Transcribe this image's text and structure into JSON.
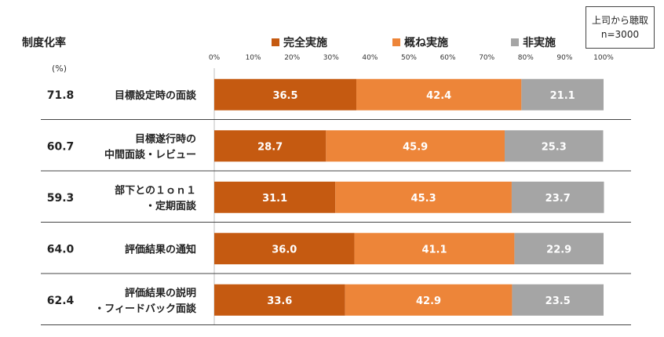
{
  "note": {
    "line1": "上司から聴取",
    "line2": "n=3000"
  },
  "rate_title": "制度化率",
  "unit": "(%)",
  "chart_data": {
    "type": "bar",
    "orientation": "horizontal",
    "stacked": true,
    "xlim": [
      0,
      100
    ],
    "x_ticks": [
      "0%",
      "10%",
      "20%",
      "30%",
      "40%",
      "50%",
      "60%",
      "70%",
      "80%",
      "90%",
      "100%"
    ],
    "categories": [
      [
        "目標設定時の面談"
      ],
      [
        "目標遂行時の",
        "中間面談・レビュー"
      ],
      [
        "部下との１ｏｎ１",
        "・定期面談"
      ],
      [
        "評価結果の通知"
      ],
      [
        "評価結果の説明",
        "・フィードバック面談"
      ]
    ],
    "rates": [
      "71.8",
      "60.7",
      "59.3",
      "64.0",
      "62.4"
    ],
    "series": [
      {
        "name": "完全実施",
        "color": "#c55a11",
        "values": [
          36.5,
          28.7,
          31.1,
          36.0,
          33.6
        ]
      },
      {
        "name": "概ね実施",
        "color": "#ed8539",
        "values": [
          42.4,
          45.9,
          45.3,
          41.1,
          42.9
        ]
      },
      {
        "name": "非実施",
        "color": "#a5a5a5",
        "values": [
          21.1,
          25.3,
          23.7,
          22.9,
          23.5
        ]
      }
    ],
    "legend_position": "top",
    "grid": false
  }
}
